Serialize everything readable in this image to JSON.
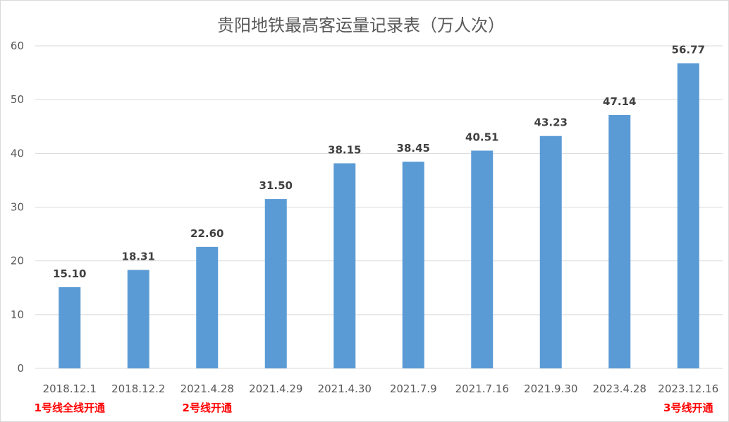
{
  "chart_data": {
    "type": "bar",
    "title": "贵阳地铁最高客运量记录表（万人次）",
    "categories": [
      "2018.12.1",
      "2018.12.2",
      "2021.4.28",
      "2021.4.29",
      "2021.4.30",
      "2021.7.9",
      "2021.7.16",
      "2021.9.30",
      "2023.4.28",
      "2023.12.16"
    ],
    "values": [
      15.1,
      18.31,
      22.6,
      31.5,
      38.15,
      38.45,
      40.51,
      43.23,
      47.14,
      56.77
    ],
    "value_labels": [
      "15.10",
      "18.31",
      "22.60",
      "31.50",
      "38.15",
      "38.45",
      "40.51",
      "43.23",
      "47.14",
      "56.77"
    ],
    "ylim": [
      0,
      60
    ],
    "yticks": [
      0,
      10,
      20,
      30,
      40,
      50,
      60
    ],
    "grid": true,
    "legend": "none",
    "xlabel": "",
    "ylabel": "",
    "annotations": [
      {
        "category_index": 0,
        "text": "1号线全线开通"
      },
      {
        "category_index": 2,
        "text": "2号线开通"
      },
      {
        "category_index": 9,
        "text": "3号线开通"
      }
    ]
  },
  "colors": {
    "bar": "#5b9bd5",
    "grid": "#d9d9d9",
    "annotation": "#ff0000"
  }
}
